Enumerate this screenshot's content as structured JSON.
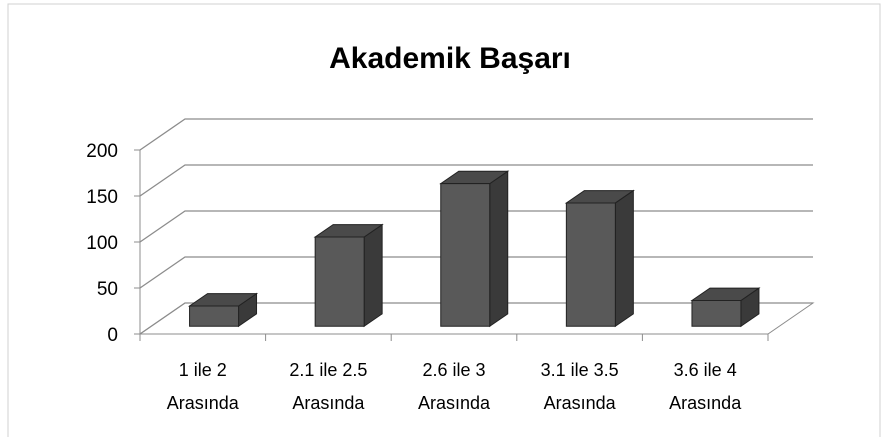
{
  "chart_data": {
    "type": "bar3d",
    "title": "Akademik Başarı",
    "categories": [
      "1 ile 2 Arasında",
      "2.1 ile 2.5 Arasında",
      "2.6 ile 3 Arasında",
      "3.1 ile 3.5 Arasında",
      "3.6 ile 4 Arasında"
    ],
    "values": [
      22,
      97,
      155,
      134,
      28
    ],
    "color": "#595959",
    "ylim": [
      0,
      200
    ],
    "yticks": [
      0,
      50,
      100,
      150,
      200
    ],
    "grid": true
  }
}
